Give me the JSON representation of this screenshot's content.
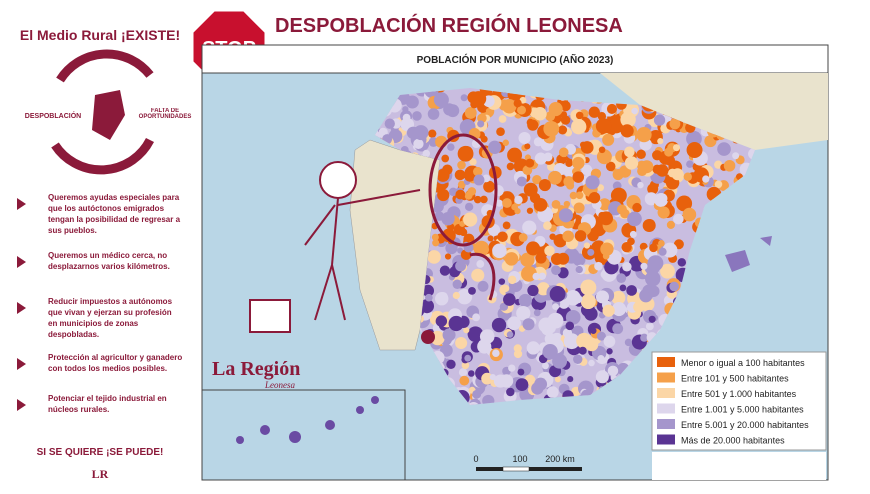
{
  "left": {
    "heading": "El Medio Rural ¡EXISTE!",
    "cycle_left": "DESPOBLACIÓN",
    "cycle_right": "FALTA DE OPORTUNIDADES",
    "bullets": [
      "Queremos ayudas especiales para que los autóctonos emigrados tengan la posibilidad de regresar a sus pueblos.",
      "Queremos un médico cerca, no desplazarnos varios kilómetros.",
      "Reducir impuestos a autónomos que vivan y ejerzan su profesión en municipios de zonas despobladas.",
      "Protección al agricultor y ganadero con todos los medios posibles.",
      "Potenciar el tejido industrial en núcleos rurales."
    ],
    "footer": "SI SE QUIERE ¡SE PUEDE!",
    "logo": "LR"
  },
  "header": {
    "stop": "STOP",
    "title": "DESPOBLACIÓN REGIÓN LEONESA"
  },
  "map": {
    "title": "POBLACIÓN POR MUNICIPIO (AÑO 2023)",
    "legend": [
      {
        "label": "Menor o igual a 100 habitantes",
        "color": "#e8610c"
      },
      {
        "label": "Entre 101 y 500 habitantes",
        "color": "#f5a04a"
      },
      {
        "label": "Entre 501 y 1.000 habitantes",
        "color": "#fbd6a6"
      },
      {
        "label": "Entre 1.001 y 5.000 habitantes",
        "color": "#ddd6ec"
      },
      {
        "label": "Entre 5.001 y 20.000 habitantes",
        "color": "#a596cc"
      },
      {
        "label": "Más de 20.000 habitantes",
        "color": "#5a3493"
      }
    ],
    "scale": [
      "0",
      "100",
      "200 km"
    ],
    "brand": "La Región",
    "brand_sub": "Leonesa"
  }
}
